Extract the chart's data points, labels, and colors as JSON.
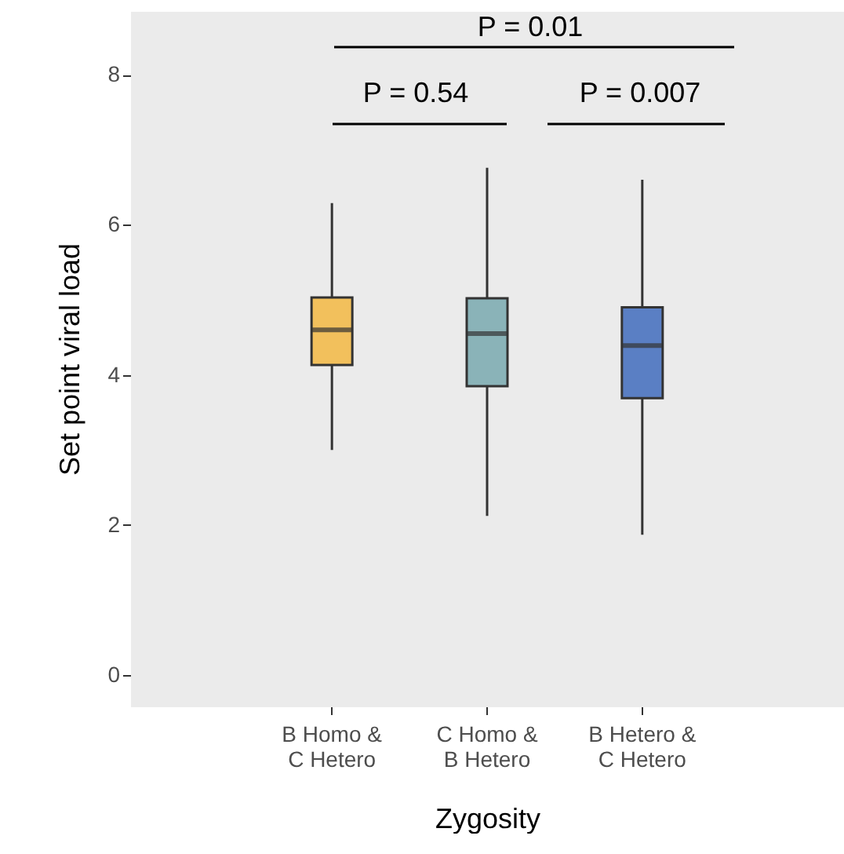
{
  "chart_data": {
    "type": "box",
    "xlabel": "Zygosity",
    "ylabel": "Set point viral load",
    "categories": [
      "B Homo & C Hetero",
      "C Homo & B Hetero",
      "B Hetero & C Hetero"
    ],
    "colors": [
      "#f2c05c",
      "#8ab3b8",
      "#5a7fc4"
    ],
    "boxes": [
      {
        "low": 3.0,
        "q1": 4.13,
        "median": 4.6,
        "q3": 5.03,
        "high": 6.29
      },
      {
        "low": 2.12,
        "q1": 3.85,
        "median": 4.55,
        "q3": 5.02,
        "high": 6.76
      },
      {
        "low": 1.87,
        "q1": 3.69,
        "median": 4.39,
        "q3": 4.9,
        "high": 6.6
      }
    ],
    "ylim": [
      -0.42,
      8.85
    ],
    "yticks": [
      0,
      2,
      4,
      6,
      8
    ],
    "grid": false,
    "annotations": [
      "P = 0.01",
      "P = 0.54",
      "P = 0.007"
    ]
  }
}
